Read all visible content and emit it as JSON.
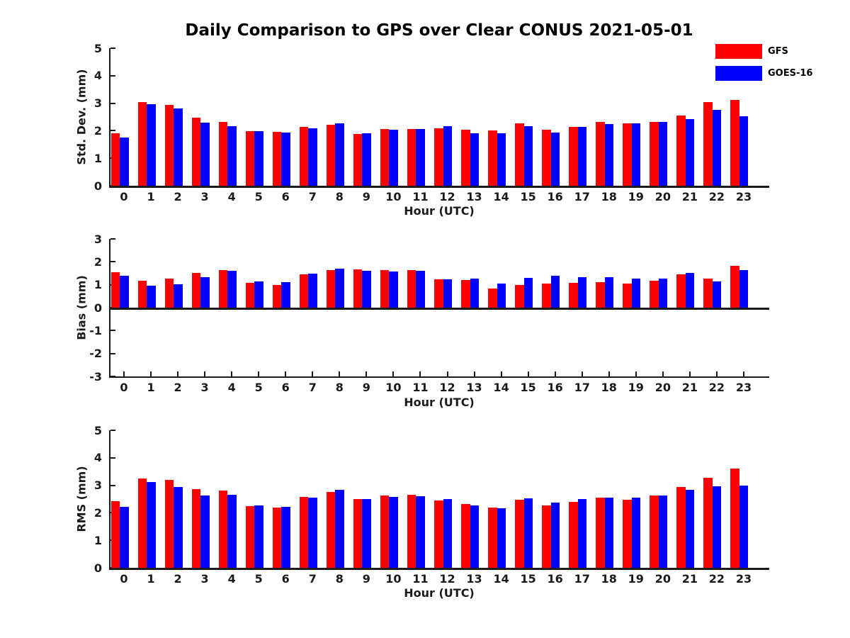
{
  "header": {
    "title": "Daily Comparison to GPS over Clear CONUS 2021-05-01"
  },
  "legend": {
    "position": "top-right",
    "items": [
      {
        "label": "GFS",
        "color": "#ff0000"
      },
      {
        "label": "GOES-16",
        "color": "#0000ff"
      }
    ]
  },
  "colors": {
    "gfs": "#ff0000",
    "goes16": "#0000ff",
    "axis": "#1a1a1a",
    "title": "#000000",
    "background": "#ffffff"
  },
  "chart_data": [
    {
      "type": "bar",
      "title": "",
      "ylabel": "Std. Dev. (mm)",
      "xlabel": "Hour (UTC)",
      "ylim": [
        0,
        5
      ],
      "yticks": [
        0,
        1,
        2,
        3,
        4,
        5
      ],
      "grid": false,
      "bottom_axis_ticks": false,
      "categories": [
        "0",
        "1",
        "2",
        "3",
        "4",
        "5",
        "6",
        "7",
        "8",
        "9",
        "10",
        "11",
        "12",
        "13",
        "14",
        "15",
        "16",
        "17",
        "18",
        "19",
        "20",
        "21",
        "22",
        "23"
      ],
      "series": [
        {
          "name": "GFS",
          "color": "#ff0000",
          "values": [
            1.9,
            3.05,
            2.95,
            2.47,
            2.32,
            1.98,
            1.95,
            2.15,
            2.22,
            1.87,
            2.06,
            2.07,
            2.09,
            2.03,
            2.02,
            2.26,
            2.03,
            2.13,
            2.32,
            2.26,
            2.31,
            2.55,
            3.05,
            3.11
          ]
        },
        {
          "name": "GOES-16",
          "color": "#0000ff",
          "values": [
            1.75,
            2.97,
            2.8,
            2.3,
            2.17,
            1.98,
            1.93,
            2.08,
            2.27,
            1.91,
            2.03,
            2.05,
            2.16,
            1.91,
            1.91,
            2.16,
            1.94,
            2.13,
            2.24,
            2.27,
            2.33,
            2.43,
            2.76,
            2.52
          ]
        }
      ]
    },
    {
      "type": "bar",
      "title": "",
      "ylabel": "Bias (mm)",
      "xlabel": "Hour (UTC)",
      "ylim": [
        -3,
        3
      ],
      "yticks": [
        -3,
        -2,
        -1,
        0,
        1,
        2,
        3
      ],
      "grid": false,
      "bottom_axis_ticks": true,
      "categories": [
        "0",
        "1",
        "2",
        "3",
        "4",
        "5",
        "6",
        "7",
        "8",
        "9",
        "10",
        "11",
        "12",
        "13",
        "14",
        "15",
        "16",
        "17",
        "18",
        "19",
        "20",
        "21",
        "22",
        "23"
      ],
      "series": [
        {
          "name": "GFS",
          "color": "#ff0000",
          "values": [
            1.54,
            1.19,
            1.26,
            1.51,
            1.63,
            1.08,
            1.0,
            1.44,
            1.65,
            1.66,
            1.64,
            1.64,
            1.24,
            1.2,
            0.84,
            0.99,
            1.06,
            1.09,
            1.1,
            1.05,
            1.19,
            1.45,
            1.26,
            1.84
          ]
        },
        {
          "name": "GOES-16",
          "color": "#0000ff",
          "values": [
            1.38,
            0.97,
            1.01,
            1.32,
            1.6,
            1.14,
            1.1,
            1.48,
            1.71,
            1.61,
            1.57,
            1.6,
            1.24,
            1.27,
            1.06,
            1.3,
            1.39,
            1.33,
            1.32,
            1.26,
            1.26,
            1.51,
            1.14,
            1.63
          ]
        }
      ]
    },
    {
      "type": "bar",
      "title": "",
      "ylabel": "RMS (mm)",
      "xlabel": "Hour (UTC)",
      "ylim": [
        0,
        5
      ],
      "yticks": [
        0,
        1,
        2,
        3,
        4,
        5
      ],
      "grid": false,
      "bottom_axis_ticks": false,
      "categories": [
        "0",
        "1",
        "2",
        "3",
        "4",
        "5",
        "6",
        "7",
        "8",
        "9",
        "10",
        "11",
        "12",
        "13",
        "14",
        "15",
        "16",
        "17",
        "18",
        "19",
        "20",
        "21",
        "22",
        "23"
      ],
      "series": [
        {
          "name": "GFS",
          "color": "#ff0000",
          "values": [
            2.42,
            3.26,
            3.2,
            2.86,
            2.8,
            2.25,
            2.19,
            2.58,
            2.77,
            2.49,
            2.62,
            2.65,
            2.44,
            2.33,
            2.2,
            2.47,
            2.26,
            2.39,
            2.56,
            2.48,
            2.63,
            2.95,
            3.28,
            3.6
          ]
        },
        {
          "name": "GOES-16",
          "color": "#0000ff",
          "values": [
            2.21,
            3.12,
            2.95,
            2.63,
            2.66,
            2.28,
            2.22,
            2.55,
            2.84,
            2.5,
            2.57,
            2.6,
            2.5,
            2.28,
            2.16,
            2.53,
            2.37,
            2.49,
            2.56,
            2.54,
            2.63,
            2.83,
            2.96,
            3.0
          ]
        }
      ]
    }
  ]
}
